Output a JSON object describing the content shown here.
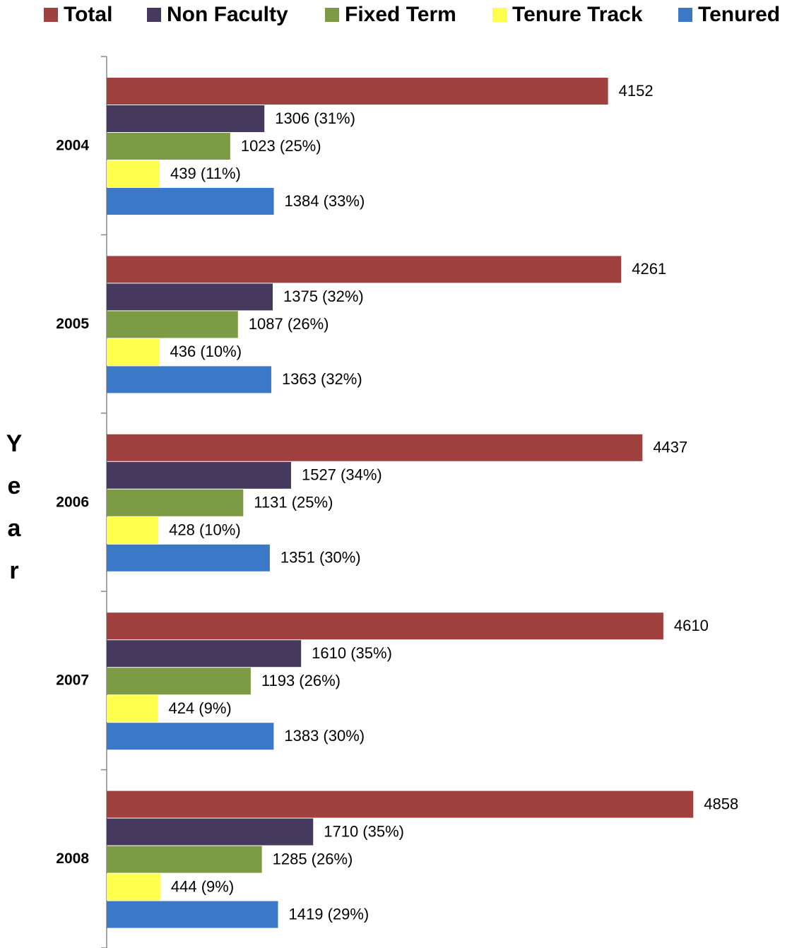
{
  "chart_data": {
    "type": "barh",
    "ylabel": "Year",
    "categories": [
      "2004",
      "2005",
      "2006",
      "2007",
      "2008"
    ],
    "xlim": [
      0,
      5500
    ],
    "legend": "top",
    "series": [
      {
        "name": "Total",
        "color": "#a0403f",
        "values": [
          4152,
          4261,
          4437,
          4610,
          4858
        ]
      },
      {
        "name": "Non Faculty",
        "color": "#46395e",
        "values": [
          1306,
          1375,
          1527,
          1610,
          1710
        ],
        "value_labels": [
          "1306 (31%)",
          "1375 (32%)",
          "1527 (34%)",
          "1610 (35%)",
          "1710 (35%)"
        ]
      },
      {
        "name": "Fixed Term",
        "color": "#7d9b45",
        "values": [
          1023,
          1087,
          1131,
          1193,
          1285
        ],
        "value_labels": [
          "1023 (25%)",
          "1087 (26%)",
          "1131 (25%)",
          "1193 (26%)",
          "1285 (26%)"
        ]
      },
      {
        "name": "Tenure Track",
        "color": "#ffff4d",
        "values": [
          439,
          436,
          428,
          424,
          444
        ],
        "value_labels": [
          "439 (11%)",
          "436 (10%)",
          "428 (10%)",
          "424 (9%)",
          "444 (9%)"
        ]
      },
      {
        "name": "Tenured",
        "color": "#3b78c8",
        "values": [
          1384,
          1363,
          1351,
          1383,
          1419
        ],
        "value_labels": [
          "1384 (33%)",
          "1363 (32%)",
          "1351 (30%)",
          "1383 (30%)",
          "1419 (29%)"
        ]
      }
    ]
  }
}
